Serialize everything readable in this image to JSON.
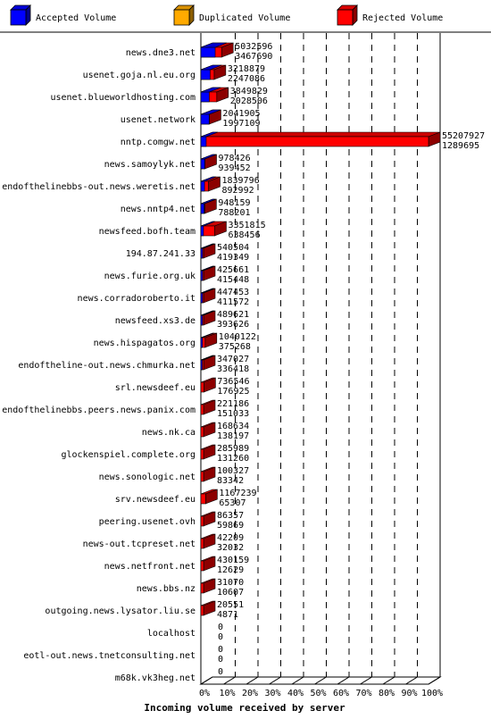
{
  "chart_data": {
    "type": "bar",
    "orientation": "horizontal",
    "stacked": true,
    "xlabel": "Incoming volume received by server",
    "xlim": [
      0,
      100
    ],
    "x_ticks": [
      "0%",
      "10%",
      "20%",
      "30%",
      "40%",
      "50%",
      "60%",
      "70%",
      "80%",
      "90%",
      "100%"
    ],
    "grid": true,
    "legend_position": "top",
    "legend": [
      {
        "name": "Accepted Volume",
        "color": "#0000ff"
      },
      {
        "name": "Duplicated Volume",
        "color": "#ffaa00"
      },
      {
        "name": "Rejected Volume",
        "color": "#ff0000"
      }
    ],
    "servers": [
      {
        "name": "news.dne3.net",
        "total": "5032596",
        "accepted": "3467690"
      },
      {
        "name": "usenet.goja.nl.eu.org",
        "total": "3218879",
        "accepted": "2247086"
      },
      {
        "name": "usenet.blueworldhosting.com",
        "total": "3849829",
        "accepted": "2028506"
      },
      {
        "name": "usenet.network",
        "total": "2041905",
        "accepted": "1997109"
      },
      {
        "name": "nntp.comgw.net",
        "total": "55207927",
        "accepted": "1289695"
      },
      {
        "name": "news.samoylyk.net",
        "total": "978426",
        "accepted": "939452"
      },
      {
        "name": "endofthelinebbs-out.news.weretis.net",
        "total": "1839796",
        "accepted": "892992"
      },
      {
        "name": "news.nntp4.net",
        "total": "948159",
        "accepted": "788201"
      },
      {
        "name": "newsfeed.bofh.team",
        "total": "3351815",
        "accepted": "638456"
      },
      {
        "name": "194.87.241.33",
        "total": "540504",
        "accepted": "419349"
      },
      {
        "name": "news.furie.org.uk",
        "total": "425661",
        "accepted": "415448"
      },
      {
        "name": "news.corradoroberto.it",
        "total": "447453",
        "accepted": "411572"
      },
      {
        "name": "newsfeed.xs3.de",
        "total": "489621",
        "accepted": "393626"
      },
      {
        "name": "news.hispagatos.org",
        "total": "1040122",
        "accepted": "375268"
      },
      {
        "name": "endoftheline-out.news.chmurka.net",
        "total": "347027",
        "accepted": "336418"
      },
      {
        "name": "srl.newsdeef.eu",
        "total": "736546",
        "accepted": "176925"
      },
      {
        "name": "endofthelinebbs.peers.news.panix.com",
        "total": "221186",
        "accepted": "151033"
      },
      {
        "name": "news.nk.ca",
        "total": "168634",
        "accepted": "138197"
      },
      {
        "name": "glockenspiel.complete.org",
        "total": "285989",
        "accepted": "131260"
      },
      {
        "name": "news.sonologic.net",
        "total": "100327",
        "accepted": "83342"
      },
      {
        "name": "srv.newsdeef.eu",
        "total": "1167239",
        "accepted": "65307"
      },
      {
        "name": "peering.usenet.ovh",
        "total": "86357",
        "accepted": "59869"
      },
      {
        "name": "news-out.tcpreset.net",
        "total": "42209",
        "accepted": "32032"
      },
      {
        "name": "news.netfront.net",
        "total": "430159",
        "accepted": "12629"
      },
      {
        "name": "news.bbs.nz",
        "total": "31070",
        "accepted": "10607"
      },
      {
        "name": "outgoing.news.lysator.liu.se",
        "total": "20551",
        "accepted": "4871"
      },
      {
        "name": "localhost",
        "total": "0",
        "accepted": "0"
      },
      {
        "name": "eotl-out.news.tnetconsulting.net",
        "total": "0",
        "accepted": "0"
      },
      {
        "name": "m68k.vk3heg.net",
        "total": "0",
        "accepted": "0"
      }
    ]
  }
}
